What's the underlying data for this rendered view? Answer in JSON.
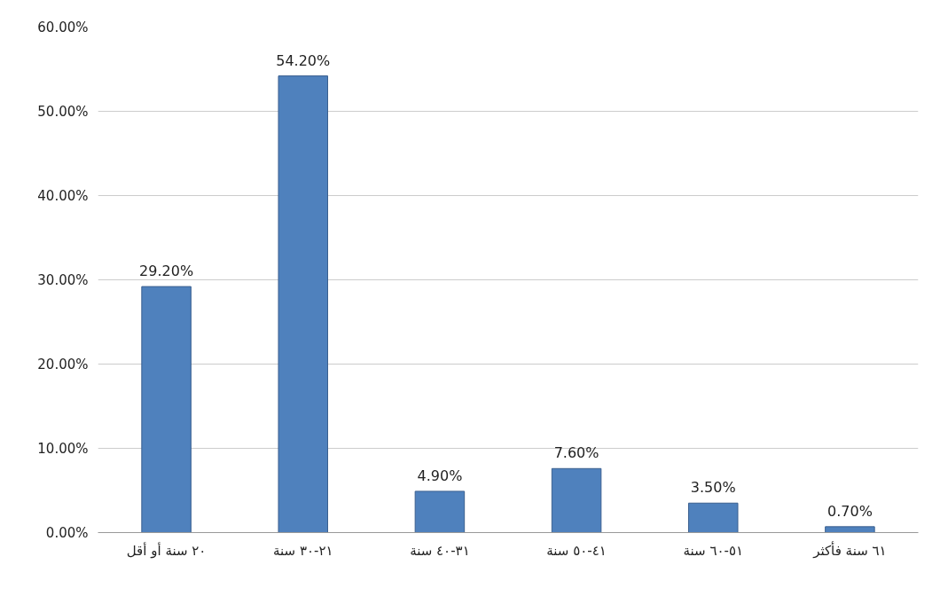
{
  "chart_data": {
    "type": "bar",
    "categories": [
      "٢٠ سنة أو أقل",
      "٢١-٣٠ سنة",
      "٣١-٤٠ سنة",
      "٤١-٥٠ سنة",
      "٥١-٦٠ سنة",
      "٦١ سنة فأكثر"
    ],
    "values": [
      29.2,
      54.2,
      4.9,
      7.6,
      3.5,
      0.7
    ],
    "color": "#4f81bd",
    "ylim": [
      0,
      60
    ],
    "yticks": [
      {
        "value": 0,
        "label": "0.00%"
      },
      {
        "value": 10,
        "label": "10.00%"
      },
      {
        "value": 20,
        "label": "20.00%"
      },
      {
        "value": 30,
        "label": "30.00%"
      },
      {
        "value": 40,
        "label": "40.00%"
      },
      {
        "value": 50,
        "label": "50.00%"
      },
      {
        "value": 60,
        "label": "60.00%"
      }
    ],
    "value_labels": [
      "29.20%",
      "54.20%",
      "4.90%",
      "7.60%",
      "3.50%",
      "0.70%"
    ],
    "grid": "y"
  }
}
